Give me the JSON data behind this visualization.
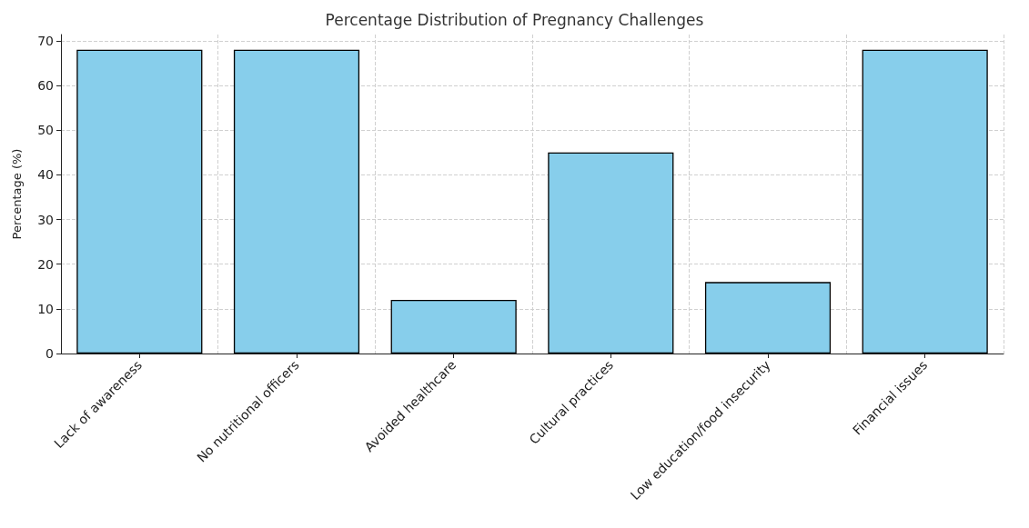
{
  "chart_data": {
    "type": "bar",
    "title": "Percentage Distribution of Pregnancy Challenges",
    "ylabel": "Percentage (%)",
    "categories": [
      "Lack of awareness",
      "No nutritional officers",
      "Avoided healthcare",
      "Cultural practices",
      "Low education/food insecurity",
      "Financial issues"
    ],
    "values": [
      68,
      68,
      12,
      45,
      16,
      68
    ],
    "color": "#87ceeb",
    "ylim": [
      0,
      71.4
    ],
    "yticks": [
      0,
      10,
      20,
      30,
      40,
      50,
      60,
      70
    ],
    "grid": true
  }
}
